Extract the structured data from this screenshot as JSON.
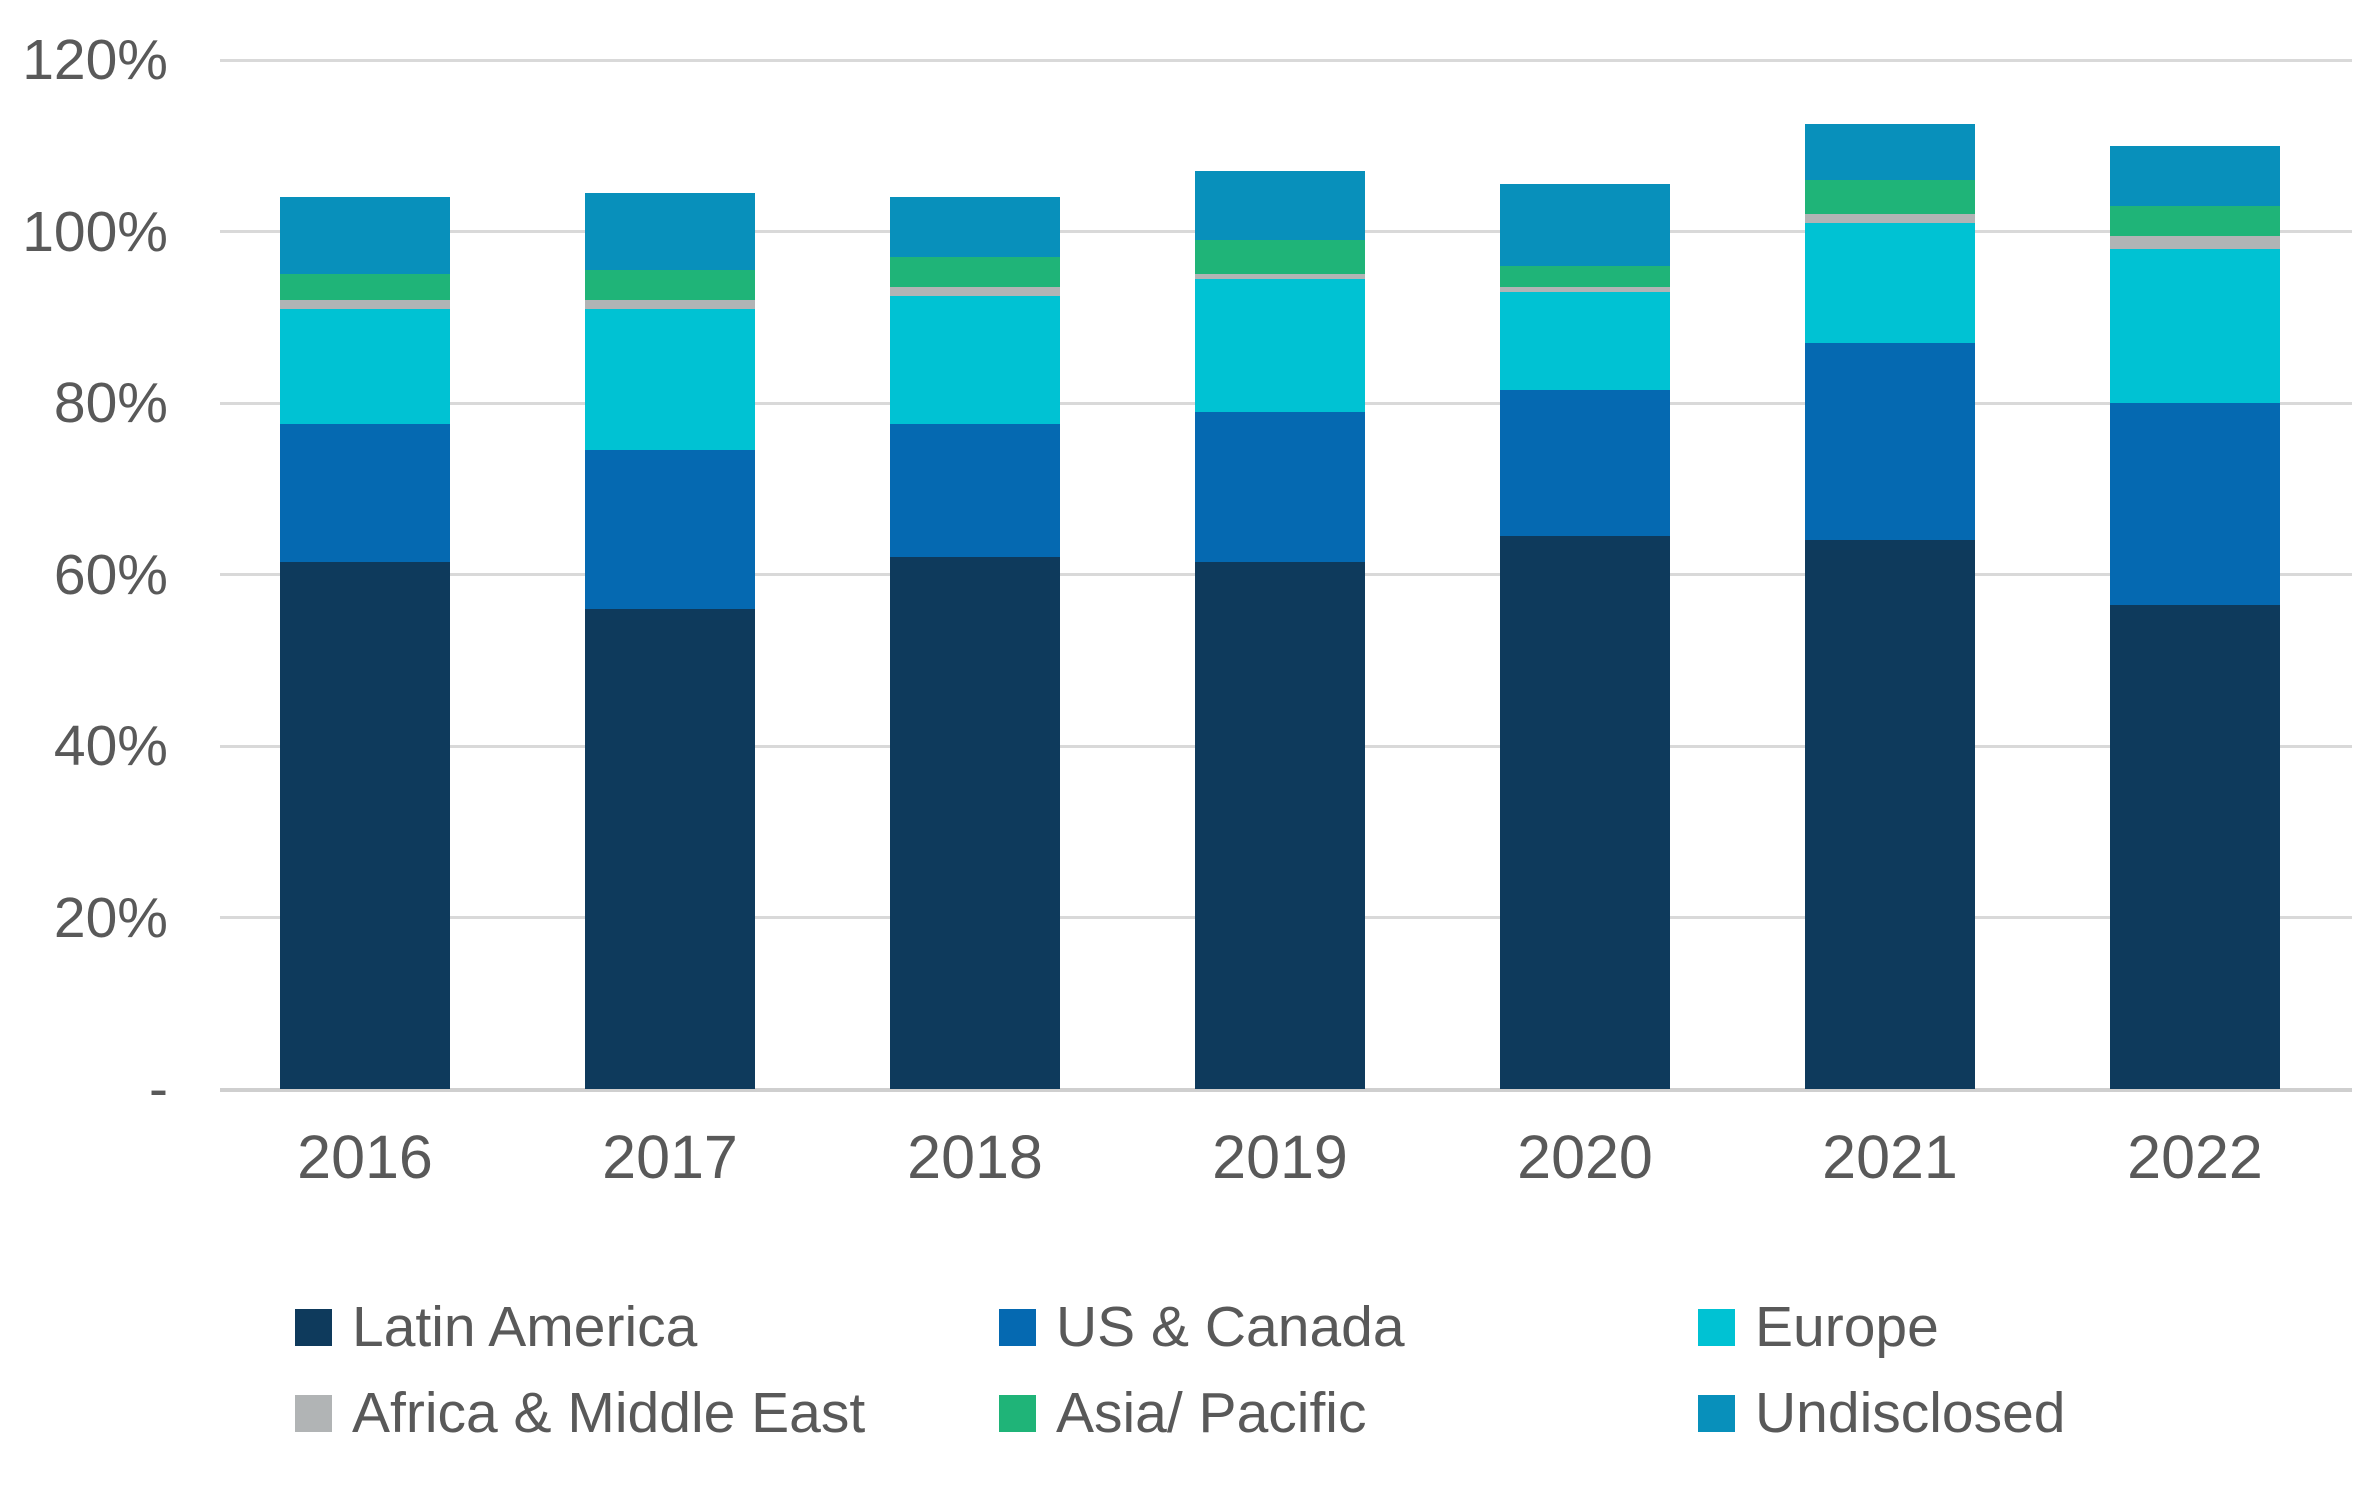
{
  "chart_data": {
    "type": "bar",
    "stacked": true,
    "title": "",
    "categories": [
      "2016",
      "2017",
      "2018",
      "2019",
      "2020",
      "2021",
      "2022"
    ],
    "series": [
      {
        "name": "Latin America",
        "color": "#0e3a5c",
        "values": [
          61.5,
          56.0,
          62.0,
          61.5,
          64.5,
          64.0,
          56.5
        ]
      },
      {
        "name": "US & Canada",
        "color": "#0569b1",
        "values": [
          16.0,
          18.5,
          15.5,
          17.5,
          17.0,
          23.0,
          23.5
        ]
      },
      {
        "name": "Europe",
        "color": "#00c2d3",
        "values": [
          13.5,
          16.5,
          15.0,
          15.5,
          11.5,
          14.0,
          18.0
        ]
      },
      {
        "name": "Africa & Middle East",
        "color": "#b1b4b5",
        "values": [
          1.0,
          1.0,
          1.0,
          0.5,
          0.5,
          1.0,
          1.5
        ]
      },
      {
        "name": "Asia/ Pacific",
        "color": "#1fb478",
        "values": [
          3.0,
          3.5,
          3.5,
          4.0,
          2.5,
          4.0,
          3.5
        ]
      },
      {
        "name": "Undisclosed",
        "color": "#0890bb",
        "values": [
          9.0,
          9.0,
          7.0,
          8.0,
          9.5,
          6.5,
          7.0
        ]
      }
    ],
    "y_axis": {
      "ticks": [
        {
          "value": 0,
          "label": "-"
        },
        {
          "value": 20,
          "label": "20%"
        },
        {
          "value": 40,
          "label": "40%"
        },
        {
          "value": 60,
          "label": "60%"
        },
        {
          "value": 80,
          "label": "80%"
        },
        {
          "value": 100,
          "label": "100%"
        },
        {
          "value": 120,
          "label": "120%"
        }
      ],
      "ylim": [
        0,
        120
      ],
      "grid": true
    },
    "legend_position": "bottom"
  },
  "colors": {
    "background": "#ffffff",
    "text": "#595959",
    "gridline": "#d9d9d9",
    "axis_line": "#cfcfcf"
  }
}
